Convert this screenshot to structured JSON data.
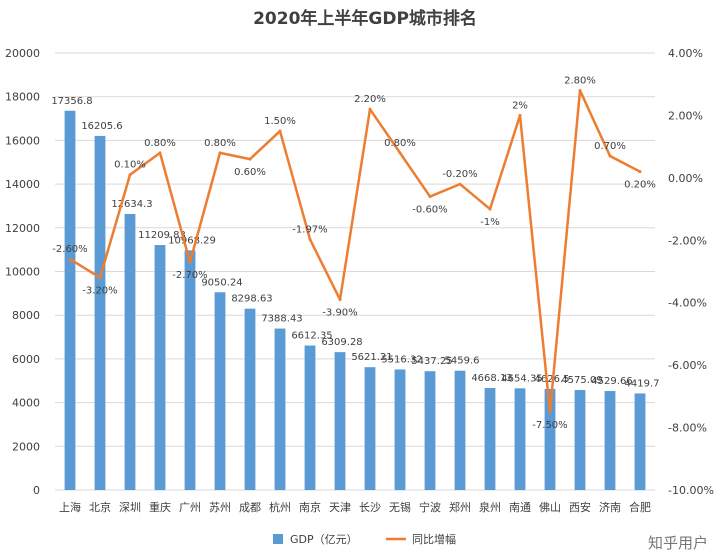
{
  "chart_data": {
    "type": "bar",
    "title": "2020年上半年GDP城市排名",
    "categories": [
      "上海",
      "北京",
      "深圳",
      "重庆",
      "广州",
      "苏州",
      "成都",
      "杭州",
      "南京",
      "天津",
      "长沙",
      "无锡",
      "宁波",
      "郑州",
      "泉州",
      "南通",
      "佛山",
      "西安",
      "济南",
      "合肥"
    ],
    "series": [
      {
        "name": "GDP（亿元）",
        "chart": "bar",
        "axis": "left",
        "color": "#5B9BD5",
        "values": [
          17356.8,
          16205.6,
          12634.3,
          11209.83,
          10968.29,
          9050.24,
          8298.63,
          7388.43,
          6612.35,
          6309.28,
          5621.21,
          5516.32,
          5437.25,
          5459.6,
          4668.13,
          4654.35,
          4626.5,
          4575.09,
          4529.66,
          4419.7
        ],
        "labels": [
          "17356.8",
          "16205.6",
          "12634.3",
          "11209.83",
          "10968.29",
          "9050.24",
          "8298.63",
          "7388.43",
          "6612.35",
          "6309.28",
          "5621.21",
          "5516.32",
          "5437.25",
          "5459.6",
          "4668.13",
          "4654.35",
          "4626.5",
          "4575.09",
          "4529.66",
          "4419.7"
        ]
      },
      {
        "name": "同比增幅",
        "chart": "line",
        "axis": "right",
        "color": "#ED7D31",
        "values": [
          -2.6,
          -3.2,
          0.1,
          0.8,
          -2.7,
          0.8,
          0.6,
          1.5,
          -1.97,
          -3.9,
          2.2,
          0.8,
          -0.6,
          -0.2,
          -1.0,
          2.0,
          -7.5,
          2.8,
          0.7,
          0.2
        ],
        "labels": [
          "-2.60%",
          "-3.20%",
          "0.10%",
          "0.80%",
          "-2.70%",
          "0.80%",
          "0.60%",
          "1.50%",
          "-1.97%",
          "-3.90%",
          "2.20%",
          "0.80%",
          "-0.60%",
          "-0.20%",
          "-1%",
          "2%",
          "-7.50%",
          "2.80%",
          "0.70%",
          "0.20%"
        ]
      }
    ],
    "y_left": {
      "min": 0,
      "max": 20000,
      "step": 2000,
      "ticks": [
        "0",
        "2000",
        "4000",
        "6000",
        "8000",
        "10000",
        "12000",
        "14000",
        "16000",
        "18000",
        "20000"
      ]
    },
    "y_right": {
      "min": -10,
      "max": 4,
      "step": 2,
      "ticks": [
        "-10.00%",
        "-8.00%",
        "-6.00%",
        "-4.00%",
        "-2.00%",
        "0.00%",
        "2.00%",
        "4.00%"
      ]
    },
    "grid": true,
    "legend_position": "bottom"
  },
  "watermark": "知乎用户"
}
